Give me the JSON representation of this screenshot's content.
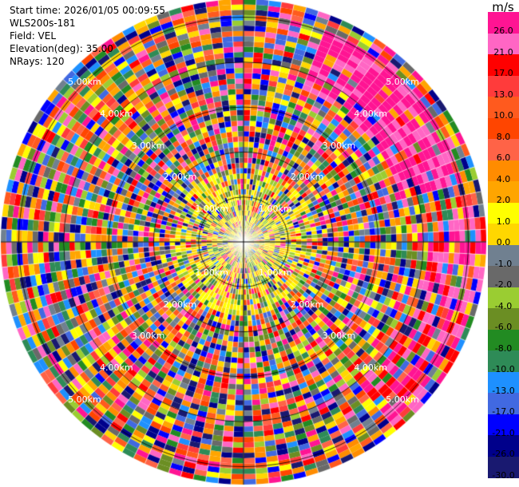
{
  "header": {
    "start_time": "Start time: 2026/01/05 00:09:55",
    "station": "WLS200s-181",
    "field": "Field: VEL",
    "elevation": "Elevation(deg): 35.00",
    "nrays": "NRays: 120"
  },
  "colorbar": {
    "unit": "m/s",
    "ticks": [
      "26.0",
      "21.0",
      "17.0",
      "13.0",
      "10.0",
      "8.0",
      "6.0",
      "4.0",
      "2.0",
      "1.0",
      "0.0",
      "-1.0",
      "-2.0",
      "-4.0",
      "-6.0",
      "-8.0",
      "-10.0",
      "-13.0",
      "-17.0",
      "-21.0",
      "-26.0",
      "-30.0"
    ],
    "colors": [
      "#ff1493",
      "#ff66c4",
      "#ff0000",
      "#ff3b3b",
      "#ff5a1e",
      "#ff4500",
      "#ff6347",
      "#ff8c00",
      "#ffa500",
      "#ffff00",
      "#ffd700",
      "#708090",
      "#696969",
      "#9acd32",
      "#6b8e23",
      "#228b22",
      "#2e8b57",
      "#1e90ff",
      "#4169e1",
      "#0000ff",
      "#00008b",
      "#191970"
    ]
  },
  "chart_data": {
    "type": "ppi",
    "field": "VEL",
    "nrays": 120,
    "elevation_deg": 35.0,
    "range_rings_km": [
      1.0,
      2.0,
      3.0,
      4.0,
      5.0
    ],
    "ring_labels": [
      "1.00km",
      "2.00km",
      "3.00km",
      "4.00km",
      "5.00km"
    ],
    "max_range_km": 5.4,
    "crosshair": true,
    "value_range": [
      -30.0,
      30.0
    ]
  }
}
